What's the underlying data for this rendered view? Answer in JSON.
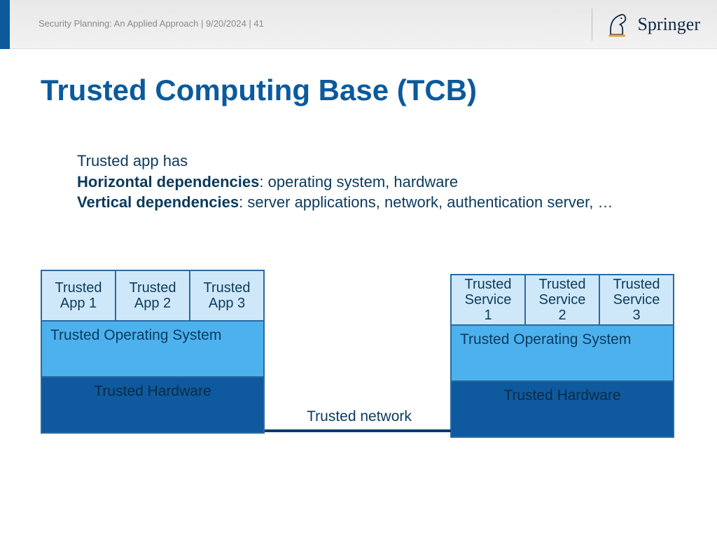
{
  "header": {
    "text": "Security Planning: An Applied Approach | 9/20/2024 | 41",
    "logo_text": "Springer",
    "accent_color": "#0b5a9c"
  },
  "title": {
    "text": "Trusted Computing Base (TCB)",
    "color": "#0b5a9c",
    "fontsize": 42
  },
  "body": {
    "line1": "Trusted app has",
    "h_label": "Horizontal dependencies",
    "h_rest": ": operating system, hardware",
    "v_label": "Vertical dependencies",
    "v_rest": ": server applications, network, authentication server, …",
    "color": "#0b3a5c",
    "fontsize": 22
  },
  "colors": {
    "app_bg": "#cfe8f9",
    "os_bg": "#4db1ee",
    "hw_bg": "#0f5a9e",
    "border": "#2a6aa0",
    "text": "#0b3a5c",
    "hw_text": "#0b2a44"
  },
  "left_stack": {
    "apps": [
      "Trusted\nApp 1",
      "Trusted\nApp 2",
      "Trusted\nApp 3"
    ],
    "os": "Trusted Operating System",
    "hw": "Trusted Hardware"
  },
  "right_stack": {
    "apps": [
      "Trusted\nService\n1",
      "Trusted\nService\n2",
      "Trusted\nService\n3"
    ],
    "os": "Trusted Operating System",
    "hw": "Trusted Hardware"
  },
  "network": {
    "label": "Trusted network",
    "line_color": "#0b3a6c"
  }
}
